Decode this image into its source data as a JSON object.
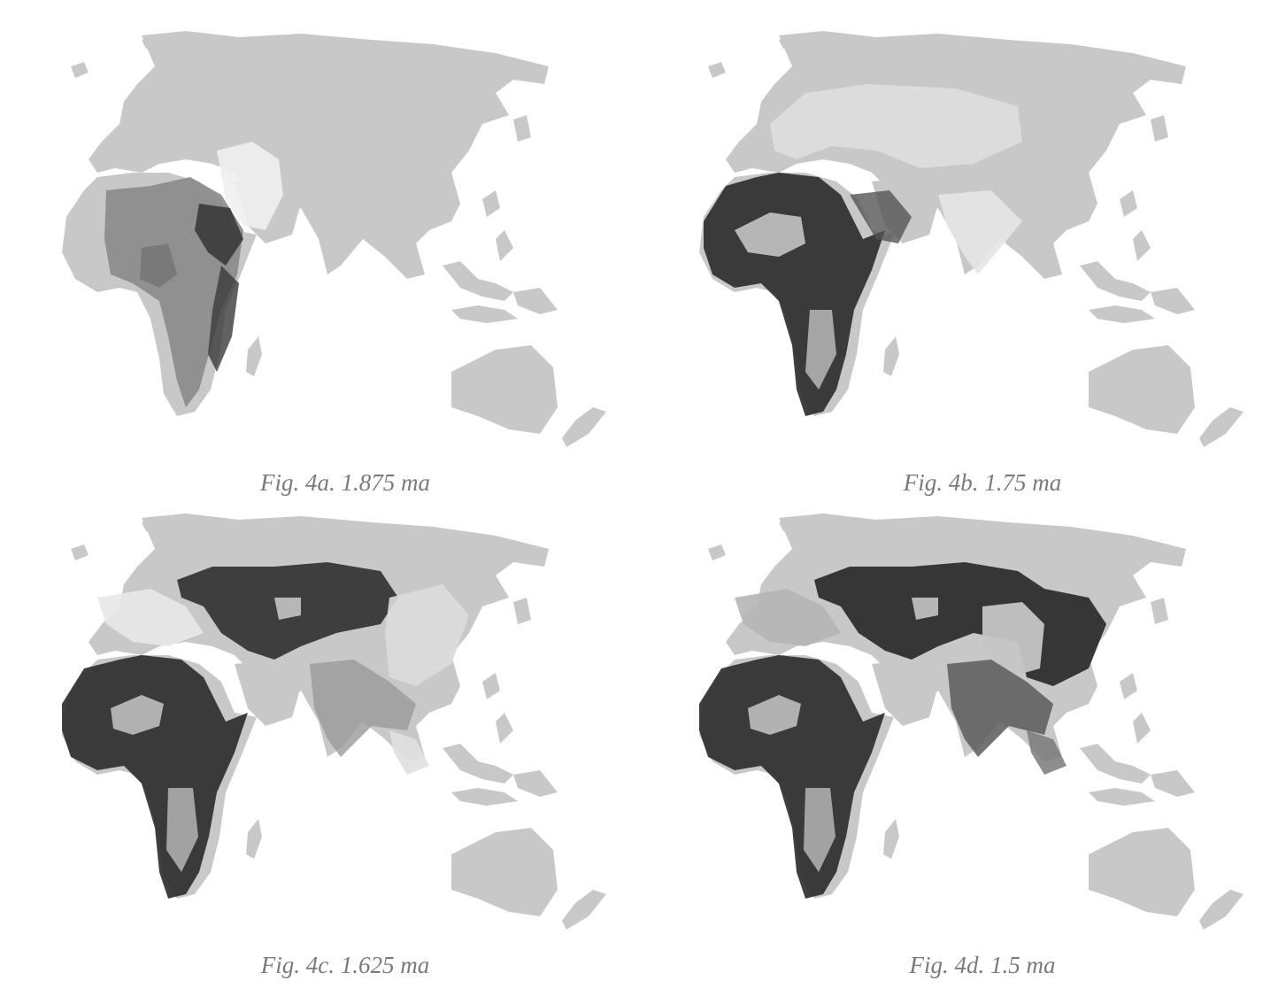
{
  "colors": {
    "land": "#c8c8c8",
    "background": "#ffffff",
    "caption": "#7a7a7a",
    "density_dark": "#1e1e1e",
    "density_light": "#f4f4f4"
  },
  "panels": [
    {
      "caption": "Fig. 4a. 1.875 ma",
      "occupied_regions": [
        "east-africa",
        "central-africa",
        "southern-africa-east",
        "levant"
      ]
    },
    {
      "caption": "Fig. 4b. 1.75 ma",
      "occupied_regions": [
        "africa",
        "arabia",
        "levant",
        "central-asia",
        "siberia-light",
        "india-light"
      ]
    },
    {
      "caption": "Fig. 4c. 1.625 ma",
      "occupied_regions": [
        "africa",
        "arabia",
        "europe-light",
        "siberia",
        "central-asia",
        "india",
        "china-light",
        "southeast-asia-light"
      ]
    },
    {
      "caption": "Fig. 4d. 1.5 ma",
      "occupied_regions": [
        "africa",
        "arabia",
        "europe-light",
        "siberia",
        "central-asia",
        "india",
        "china",
        "southeast-asia",
        "manchuria"
      ]
    }
  ]
}
